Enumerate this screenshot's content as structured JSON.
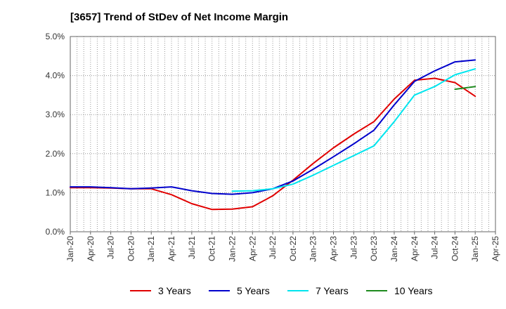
{
  "chart_data": {
    "type": "line",
    "title": "[3657]  Trend of StDev of Net Income Margin",
    "x": [
      "Jan-20",
      "Apr-20",
      "Jul-20",
      "Oct-20",
      "Jan-21",
      "Apr-21",
      "Jul-21",
      "Oct-21",
      "Jan-22",
      "Apr-22",
      "Jul-22",
      "Oct-22",
      "Jan-23",
      "Apr-23",
      "Jul-23",
      "Oct-23",
      "Jan-24",
      "Apr-24",
      "Jul-24",
      "Oct-24",
      "Jan-25"
    ],
    "x_ticks": [
      "Jan-20",
      "Apr-20",
      "Jul-20",
      "Oct-20",
      "Jan-21",
      "Apr-21",
      "Jul-21",
      "Oct-21",
      "Jan-22",
      "Apr-22",
      "Jul-22",
      "Oct-22",
      "Jan-23",
      "Apr-23",
      "Jul-23",
      "Oct-23",
      "Jan-24",
      "Apr-24",
      "Jul-24",
      "Oct-24",
      "Jan-25",
      "Apr-25"
    ],
    "y_ticks": [
      "0.0%",
      "1.0%",
      "2.0%",
      "3.0%",
      "4.0%",
      "5.0%"
    ],
    "ylim": [
      0,
      5
    ],
    "y_unit": "%",
    "grid": "vertical-dotted-monthly, horizontal-dotted",
    "legend_position": "bottom",
    "series": [
      {
        "name": "3 Years",
        "color": "#e00000",
        "values": [
          1.13,
          1.13,
          1.12,
          1.1,
          1.1,
          0.95,
          0.72,
          0.57,
          0.58,
          0.64,
          0.92,
          1.32,
          1.75,
          2.15,
          2.5,
          2.82,
          3.4,
          3.88,
          3.93,
          3.82,
          3.47
        ]
      },
      {
        "name": "5 Years",
        "color": "#0000cc",
        "values": [
          1.15,
          1.15,
          1.13,
          1.1,
          1.12,
          1.15,
          1.05,
          0.98,
          0.96,
          1.0,
          1.1,
          1.3,
          1.6,
          1.92,
          2.25,
          2.6,
          3.25,
          3.85,
          4.12,
          4.35,
          4.4
        ]
      },
      {
        "name": "7 Years",
        "color": "#00e5ee",
        "values": [
          null,
          null,
          null,
          null,
          null,
          null,
          null,
          null,
          1.04,
          1.05,
          1.1,
          1.22,
          1.45,
          1.7,
          1.95,
          2.2,
          2.82,
          3.5,
          3.72,
          4.02,
          4.17
        ]
      },
      {
        "name": "10 Years",
        "color": "#1e8a1e",
        "values": [
          null,
          null,
          null,
          null,
          null,
          null,
          null,
          null,
          null,
          null,
          null,
          null,
          null,
          null,
          null,
          null,
          null,
          null,
          null,
          3.65,
          3.72
        ]
      }
    ]
  }
}
